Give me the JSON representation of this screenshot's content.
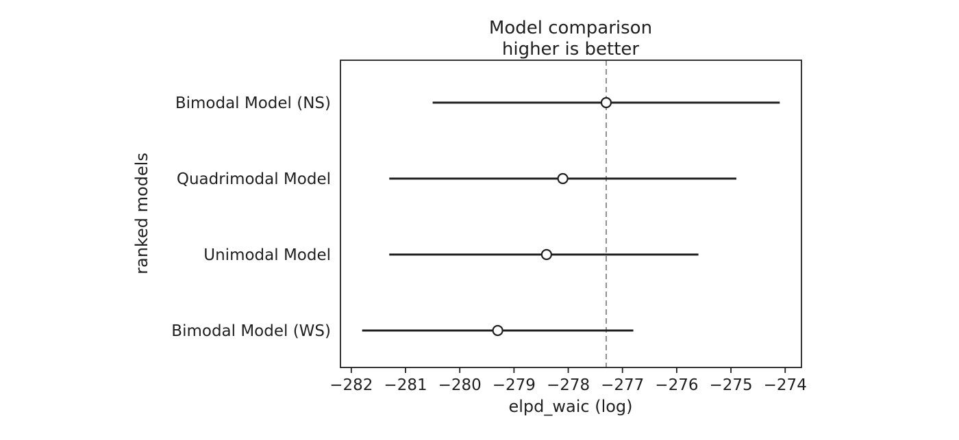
{
  "chart_data": {
    "type": "forest",
    "title": "Model comparison",
    "subtitle": "higher is better",
    "xlabel": "elpd_waic (log)",
    "ylabel": "ranked models",
    "categories": [
      "Bimodal Model (NS)",
      "Quadrimodal Model",
      "Unimodal Model",
      "Bimodal Model (WS)"
    ],
    "series": [
      {
        "name": "Bimodal Model (NS)",
        "point": -277.3,
        "lo": -280.5,
        "hi": -274.1
      },
      {
        "name": "Quadrimodal Model",
        "point": -278.1,
        "lo": -281.3,
        "hi": -274.9
      },
      {
        "name": "Unimodal Model",
        "point": -278.4,
        "lo": -281.3,
        "hi": -275.6
      },
      {
        "name": "Bimodal Model (WS)",
        "point": -279.3,
        "lo": -281.8,
        "hi": -276.8
      }
    ],
    "reference_line": -277.3,
    "xticks": [
      -282,
      -281,
      -280,
      -279,
      -278,
      -277,
      -276,
      -275,
      -274
    ],
    "xlim": [
      -282.2,
      -273.7
    ],
    "grid": false,
    "legend": false
  },
  "colors": {
    "line": "#1f1f1f",
    "reference": "#8f8f8f",
    "marker_fill": "#ffffff",
    "background": "#ffffff"
  }
}
